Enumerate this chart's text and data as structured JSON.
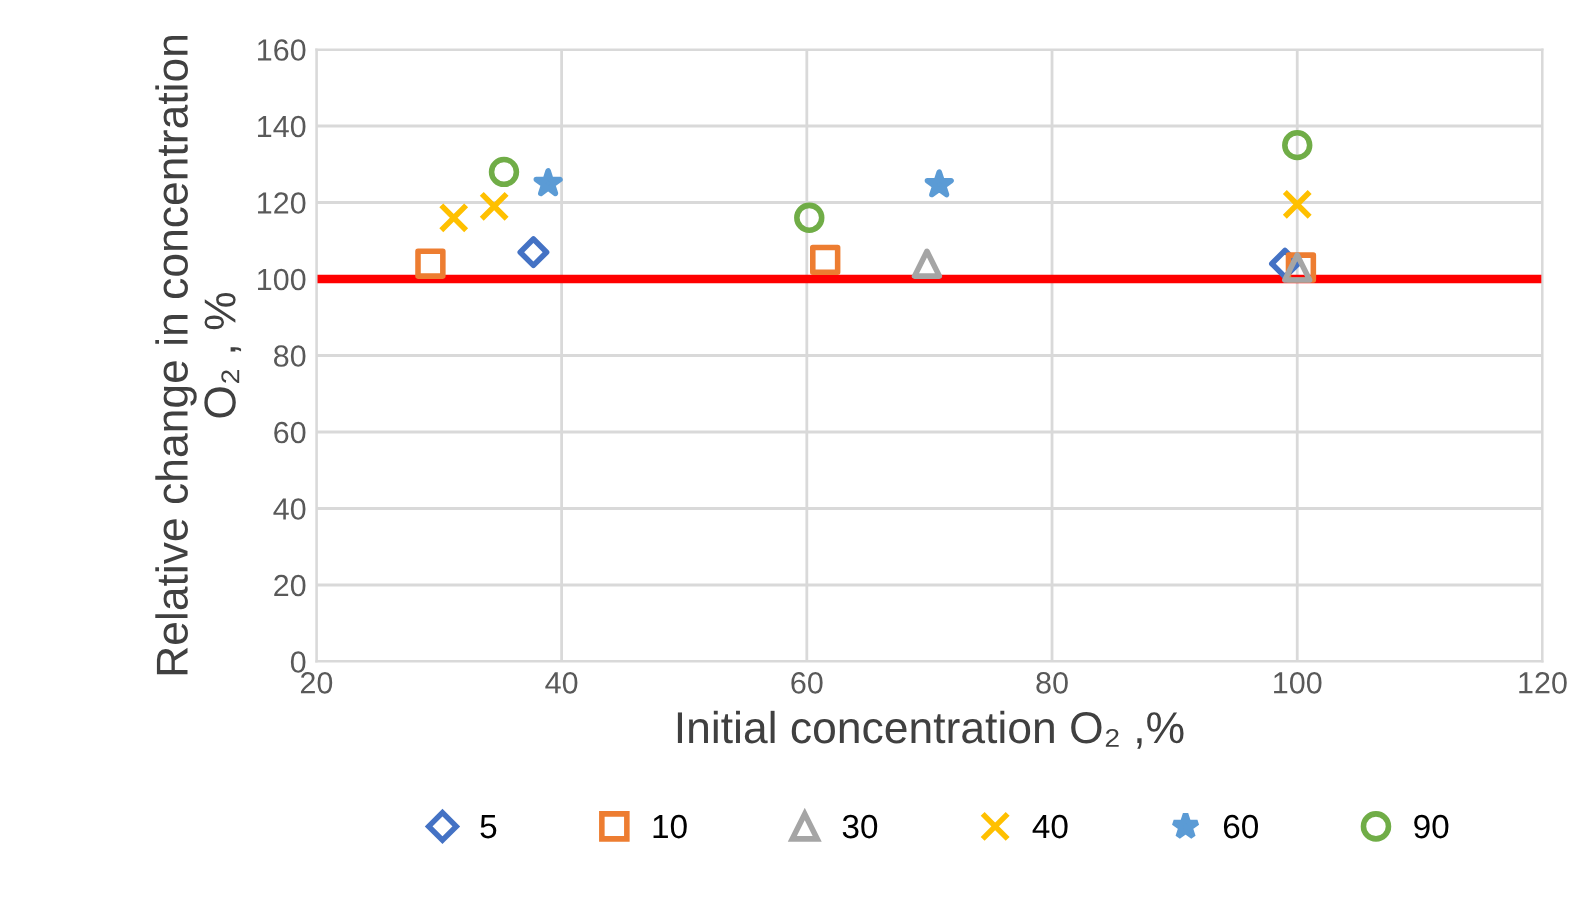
{
  "chart_data": {
    "type": "scatter",
    "xlabel": "Initial concentration O₂ ,%",
    "ylabel": "Relative change in concentration O₂ , %",
    "xlim": [
      20,
      120
    ],
    "xticks": [
      20,
      40,
      60,
      80,
      100,
      120
    ],
    "ylim": [
      0,
      160
    ],
    "yticks": [
      0,
      20,
      40,
      60,
      80,
      100,
      120,
      140,
      160
    ],
    "grid": true,
    "legend": "bottom",
    "ref_lines": [
      {
        "axis": "y",
        "value": 100,
        "color": "#ff0000",
        "line_style": "solid"
      }
    ],
    "series": [
      {
        "name": "5",
        "color": "#4472c4",
        "marker": "diamond",
        "x": [
          37.7,
          99
        ],
        "values": [
          107,
          104
        ]
      },
      {
        "name": "10",
        "color": "#ed7d31",
        "marker": "square",
        "x": [
          29.3,
          61.5,
          100.3
        ],
        "values": [
          104,
          105,
          103
        ]
      },
      {
        "name": "30",
        "color": "#a5a5a5",
        "marker": "triangle",
        "x": [
          69.8,
          100
        ],
        "values": [
          104,
          103
        ]
      },
      {
        "name": "40",
        "color": "#ffc000",
        "marker": "cross",
        "x": [
          31.2,
          34.5,
          100
        ],
        "values": [
          116,
          119,
          119.5
        ]
      },
      {
        "name": "60",
        "color": "#5b9bd5",
        "marker": "star",
        "x": [
          38.9,
          70.8
        ],
        "values": [
          125,
          124.7
        ]
      },
      {
        "name": "90",
        "color": "#70ad47",
        "marker": "circle",
        "x": [
          35.3,
          60.2,
          100
        ],
        "values": [
          128,
          116,
          135
        ]
      }
    ]
  }
}
